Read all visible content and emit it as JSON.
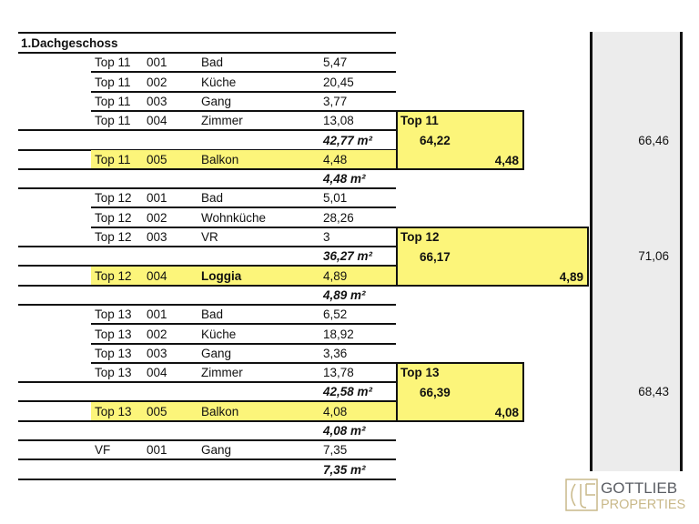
{
  "section_title": "1.Dachgeschoss",
  "rows": [
    {
      "type": "room",
      "top": "Top 11",
      "no": "001",
      "name": "Bad",
      "value": "5,47"
    },
    {
      "type": "room",
      "top": "Top 11",
      "no": "002",
      "name": "Küche",
      "value": "20,45"
    },
    {
      "type": "room",
      "top": "Top 11",
      "no": "003",
      "name": "Gang",
      "value": "3,77"
    },
    {
      "type": "room",
      "top": "Top 11",
      "no": "004",
      "name": "Zimmer",
      "value": "13,08"
    },
    {
      "type": "sum",
      "value": "42,77 m²"
    },
    {
      "type": "balcony",
      "top": "Top 11",
      "no": "005",
      "name": "Balkon",
      "value": "4,48"
    },
    {
      "type": "sum",
      "value": "4,48 m²"
    },
    {
      "type": "room",
      "top": "Top 12",
      "no": "001",
      "name": "Bad",
      "value": "5,01"
    },
    {
      "type": "room",
      "top": "Top 12",
      "no": "002",
      "name": "Wohnküche",
      "value": "28,26"
    },
    {
      "type": "room",
      "top": "Top 12",
      "no": "003",
      "name": "VR",
      "value": "3"
    },
    {
      "type": "sum",
      "value": "36,27 m²"
    },
    {
      "type": "balcony",
      "top": "Top 12",
      "no": "004",
      "name": "Loggia",
      "value": "4,89",
      "bold": true
    },
    {
      "type": "sum",
      "value": "4,89 m²"
    },
    {
      "type": "room",
      "top": "Top 13",
      "no": "001",
      "name": "Bad",
      "value": "6,52"
    },
    {
      "type": "room",
      "top": "Top 13",
      "no": "002",
      "name": "Küche",
      "value": "18,92"
    },
    {
      "type": "room",
      "top": "Top 13",
      "no": "003",
      "name": "Gang",
      "value": "3,36"
    },
    {
      "type": "room",
      "top": "Top 13",
      "no": "004",
      "name": "Zimmer",
      "value": "13,78"
    },
    {
      "type": "sum",
      "value": "42,58 m²"
    },
    {
      "type": "balcony",
      "top": "Top 13",
      "no": "005",
      "name": "Balkon",
      "value": "4,08"
    },
    {
      "type": "sum",
      "value": "4,08 m²"
    },
    {
      "type": "room",
      "top": "VF",
      "no": "001",
      "name": "Gang",
      "value": "7,35"
    },
    {
      "type": "sum",
      "value": "7,35 m²"
    }
  ],
  "summary_boxes": [
    {
      "label": "Top 11",
      "living": "64,22",
      "outdoor": "4,48"
    },
    {
      "label": "Top 12",
      "living": "66,17",
      "outdoor": "4,89"
    },
    {
      "label": "Top 13",
      "living": "66,39",
      "outdoor": "4,08"
    }
  ],
  "totals": [
    "66,46",
    "71,06",
    "68,43"
  ],
  "logo": {
    "line1": "GOTTLIEB",
    "line2": "PROPERTIES"
  },
  "colors": {
    "highlight": "#fcf57a",
    "total_column": "#ececec",
    "logo_gold": "#c9b98a",
    "logo_gray": "#5a5d63"
  }
}
